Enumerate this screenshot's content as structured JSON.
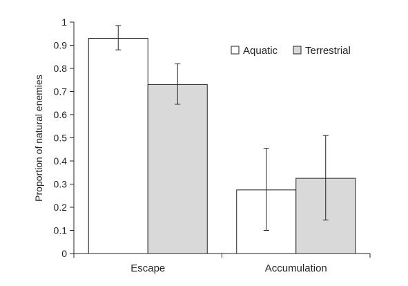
{
  "chart_data": {
    "type": "bar",
    "title": "",
    "xlabel": "",
    "ylabel": "Proportion of natural enemies",
    "ylim": [
      0,
      1
    ],
    "yticks": [
      "0",
      "0.1",
      "0.2",
      "0.3",
      "0.4",
      "0.5",
      "0.6",
      "0.7",
      "0.8",
      "0.9",
      "1"
    ],
    "categories": [
      "Escape",
      "Accumulation"
    ],
    "series": [
      {
        "name": "Aquatic",
        "color": "#ffffff",
        "values": [
          0.93,
          0.275
        ],
        "error_low": [
          0.88,
          0.1
        ],
        "error_high": [
          0.985,
          0.455
        ]
      },
      {
        "name": "Terrestrial",
        "color": "#d9d9d9",
        "values": [
          0.73,
          0.325
        ],
        "error_low": [
          0.645,
          0.145
        ],
        "error_high": [
          0.82,
          0.51
        ]
      }
    ],
    "legend_position": "top-right",
    "grid": false
  }
}
